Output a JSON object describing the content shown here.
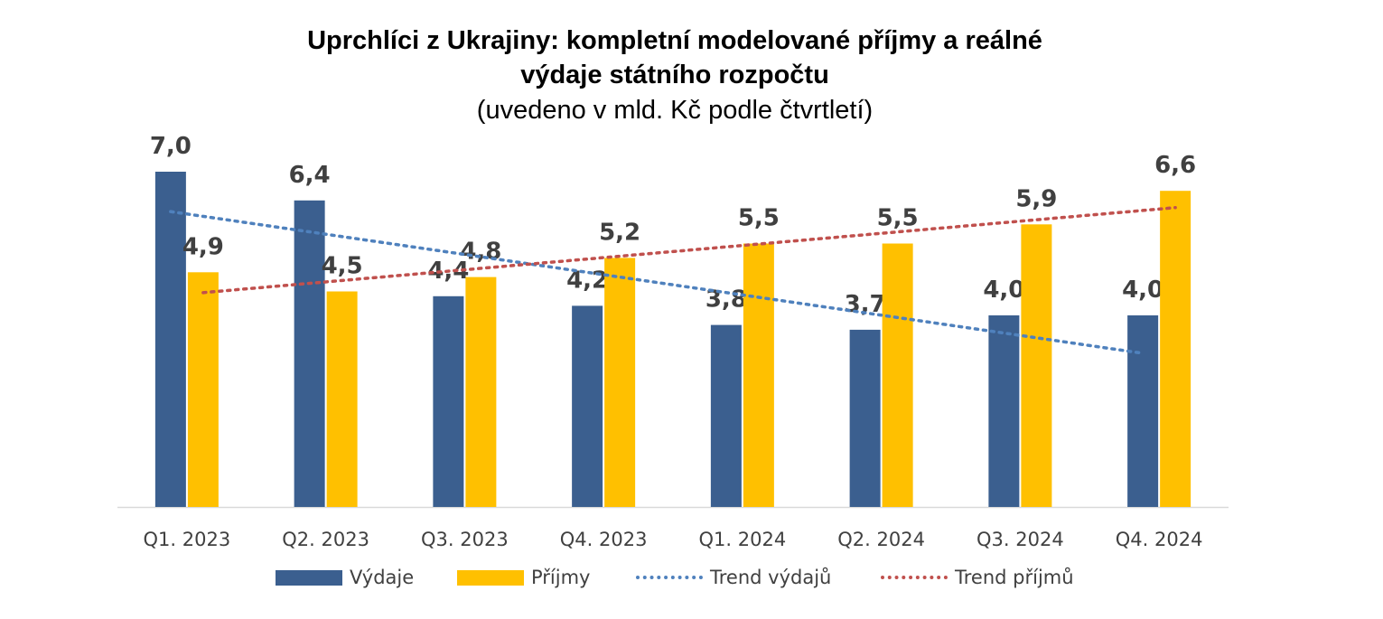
{
  "chart_data": {
    "type": "bar",
    "title_lines": [
      "Uprchlíci z Ukrajiny: kompletní modelované příjmy a reálné",
      "výdaje státního rozpočtu"
    ],
    "subtitle": "(uvedeno v mld. Kč podle čtvrtletí)",
    "categories": [
      "Q1. 2023",
      "Q2. 2023",
      "Q3. 2023",
      "Q4. 2023",
      "Q1. 2024",
      "Q2. 2024",
      "Q3. 2024",
      "Q4. 2024"
    ],
    "series": [
      {
        "name": "Výdaje",
        "color": "#3b5f8f",
        "values": [
          7.0,
          6.4,
          4.4,
          4.2,
          3.8,
          3.7,
          4.0,
          4.0
        ],
        "labels": [
          "7,0",
          "6,4",
          "4,4",
          "4,2",
          "3,8",
          "3,7",
          "4,0",
          "4,0"
        ]
      },
      {
        "name": "Příjmy",
        "color": "#ffc000",
        "values": [
          4.9,
          4.5,
          4.8,
          5.2,
          5.5,
          5.5,
          5.9,
          6.6
        ],
        "labels": [
          "4,9",
          "4,5",
          "4,8",
          "5,2",
          "5,5",
          "5,5",
          "5,9",
          "6,6"
        ]
      }
    ],
    "trendlines": [
      {
        "name": "Trend výdajů",
        "of_series": "Výdaje",
        "color": "#4f81bd",
        "style": "dotted"
      },
      {
        "name": "Trend příjmů",
        "of_series": "Příjmy",
        "color": "#c0504d",
        "style": "dotted"
      }
    ],
    "ylim": [
      0,
      7.0
    ],
    "grid": false,
    "legend_position": "bottom"
  }
}
